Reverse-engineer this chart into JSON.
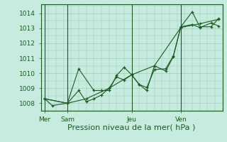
{
  "bg_color": "#c8ebe0",
  "plot_bg_color": "#c8ebe0",
  "grid_color": "#90c8b0",
  "line_color": "#1a5c20",
  "xlabel": "Pression niveau de la mer( hPa )",
  "xlabel_fontsize": 8,
  "tick_fontsize": 6.5,
  "ylim": [
    1007.5,
    1014.6
  ],
  "yticks": [
    1008,
    1009,
    1010,
    1011,
    1012,
    1013,
    1014
  ],
  "day_labels": [
    "Mer",
    "Sam",
    "Jeu",
    "Ven"
  ],
  "day_positions": [
    0.5,
    3.5,
    12.0,
    18.5
  ],
  "vline_positions": [
    0.5,
    3.5,
    12.0,
    18.5
  ],
  "xlim": [
    0,
    24
  ],
  "series1_x": [
    0.5,
    1.5,
    3.5,
    5.0,
    6.0,
    7.0,
    8.0,
    9.0,
    10.0,
    11.0,
    12.0,
    13.0,
    14.0,
    15.0,
    16.5,
    17.5,
    18.5,
    20.0,
    21.0,
    22.5,
    23.5
  ],
  "series1_y": [
    1008.3,
    1007.85,
    1008.0,
    1008.85,
    1008.1,
    1008.3,
    1008.55,
    1009.0,
    1009.75,
    1009.55,
    1009.9,
    1009.25,
    1009.05,
    1010.25,
    1010.3,
    1011.15,
    1013.1,
    1013.25,
    1013.05,
    1013.35,
    1013.15
  ],
  "series2_x": [
    0.5,
    3.5,
    6.0,
    9.0,
    12.0,
    15.0,
    18.5,
    21.0,
    23.5
  ],
  "series2_y": [
    1008.3,
    1008.0,
    1008.3,
    1009.0,
    1009.9,
    1010.5,
    1013.05,
    1013.3,
    1013.6
  ],
  "series3_x": [
    0.5,
    3.5,
    5.0,
    7.0,
    8.0,
    9.0,
    10.0,
    11.0,
    12.0,
    13.0,
    14.0,
    15.0,
    16.5,
    17.5,
    18.5,
    20.0,
    21.0,
    22.5,
    23.5
  ],
  "series3_y": [
    1008.3,
    1008.0,
    1010.3,
    1008.85,
    1008.85,
    1008.85,
    1009.85,
    1010.4,
    1009.9,
    1009.25,
    1008.85,
    1010.5,
    1010.15,
    1011.1,
    1013.1,
    1014.1,
    1013.1,
    1013.1,
    1013.65
  ]
}
